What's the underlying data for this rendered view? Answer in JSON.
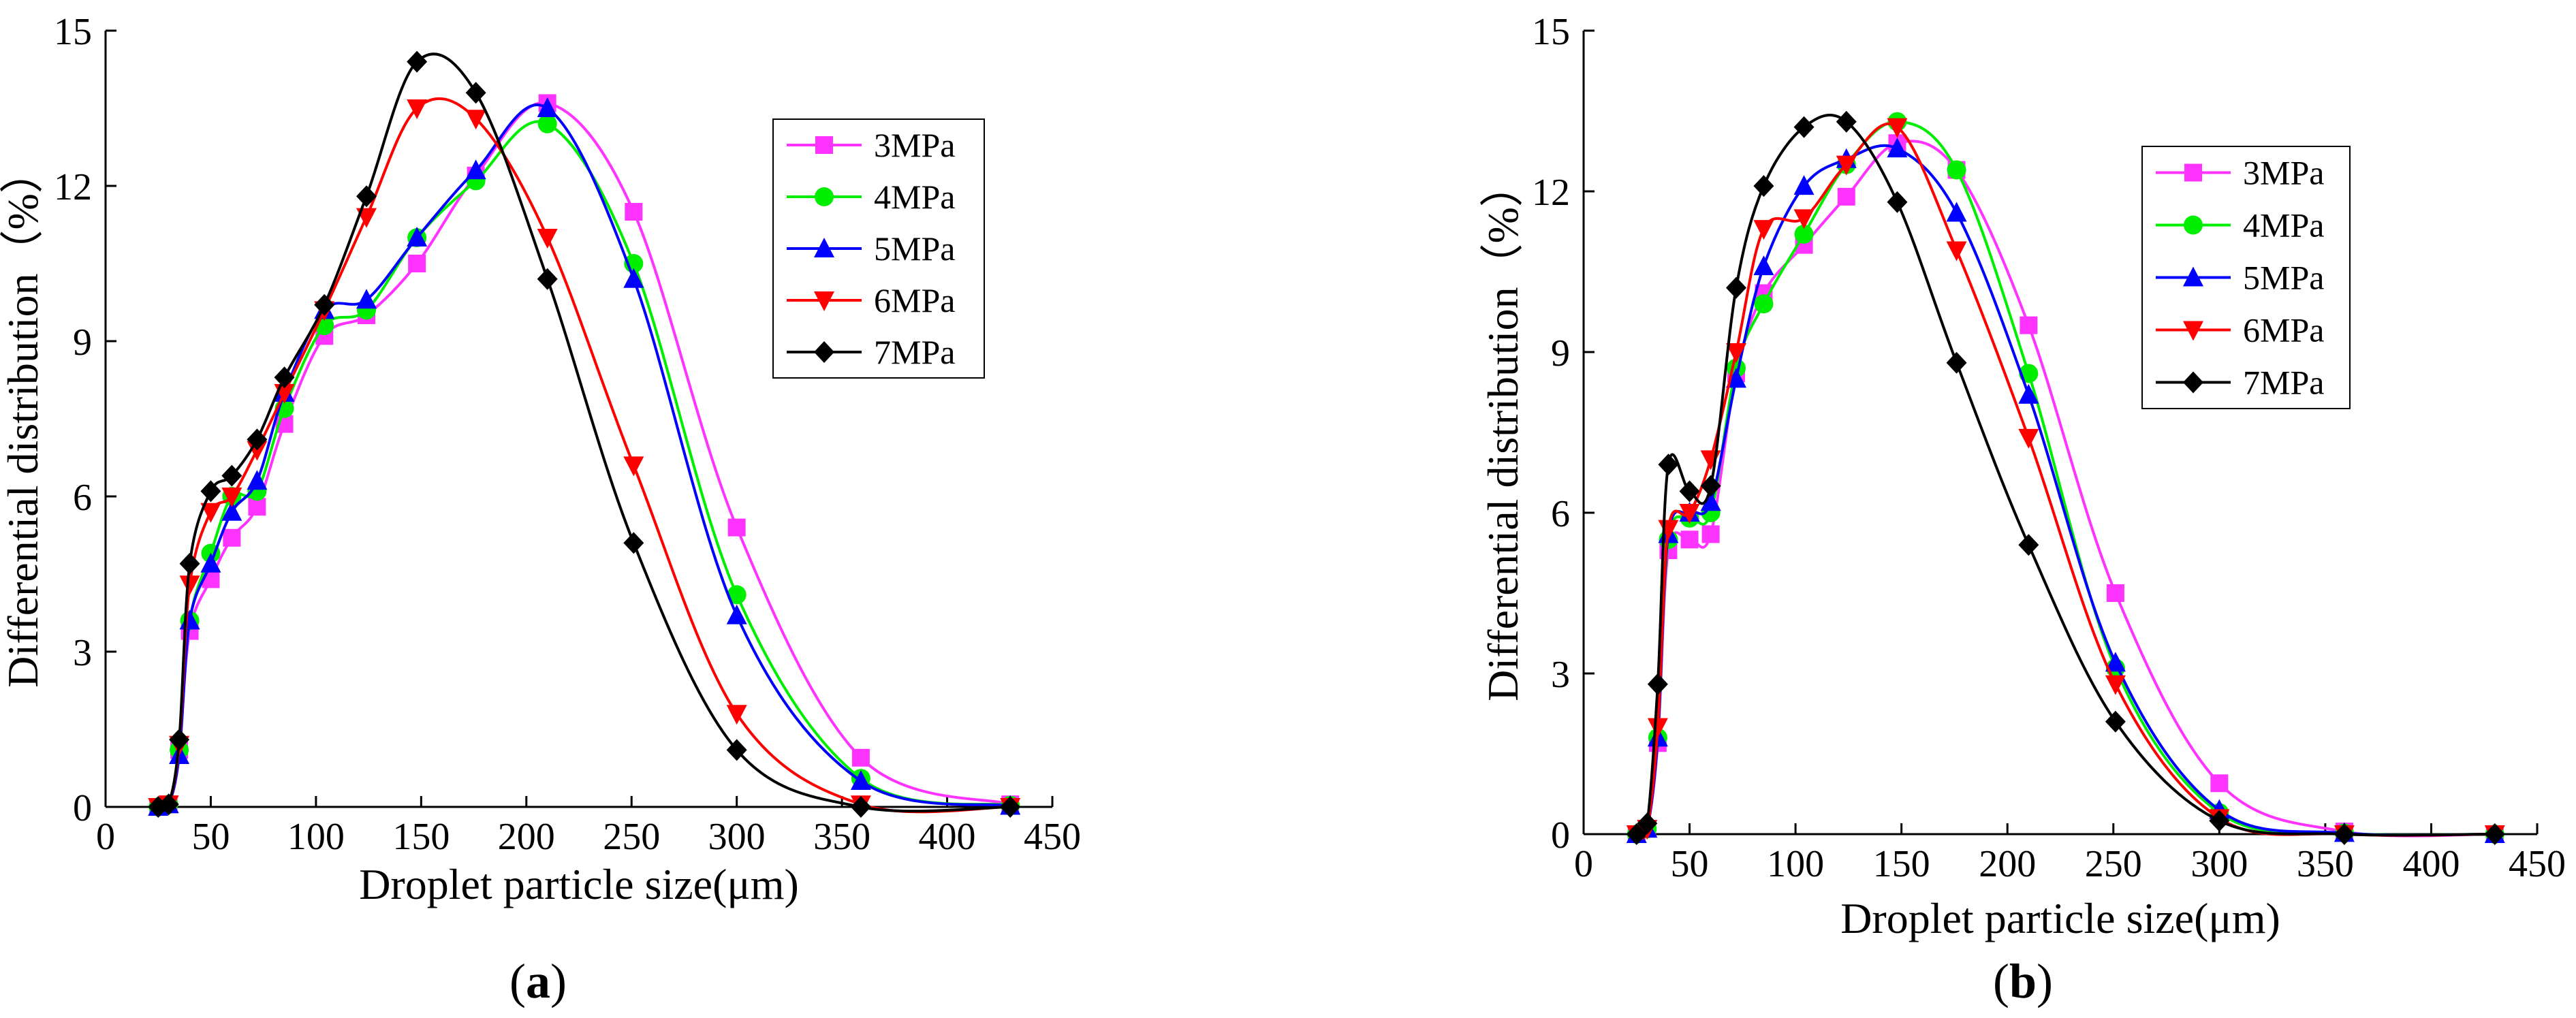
{
  "figure": {
    "panels": [
      {
        "label_open": "(",
        "label_letter": "a",
        "label_close": ")"
      },
      {
        "label_open": "(",
        "label_letter": "b",
        "label_close": ")"
      }
    ]
  },
  "series_styles": [
    {
      "name": "3MPa",
      "color": "#ff33ff",
      "marker": "square"
    },
    {
      "name": "4MPa",
      "color": "#00ee00",
      "marker": "circle"
    },
    {
      "name": "5MPa",
      "color": "#0000ff",
      "marker": "triangle-up"
    },
    {
      "name": "6MPa",
      "color": "#ff0000",
      "marker": "triangle-down"
    },
    {
      "name": "7MPa",
      "color": "#000000",
      "marker": "diamond"
    }
  ],
  "chart_data": [
    {
      "type": "line",
      "panel": "a",
      "title": "",
      "xlabel": "Droplet particle size(μm)",
      "ylabel": "Differential distribution（%）",
      "xlim": [
        0,
        450
      ],
      "ylim": [
        0,
        15
      ],
      "xticks": [
        0,
        50,
        100,
        150,
        200,
        250,
        300,
        350,
        400,
        450
      ],
      "yticks": [
        0,
        3,
        6,
        9,
        12,
        15
      ],
      "legend_position": "upper-right",
      "x": [
        25,
        30,
        35,
        40,
        50,
        60,
        72,
        85,
        104,
        124,
        148,
        176,
        210,
        251,
        300,
        359,
        430
      ],
      "series": [
        {
          "name": "3MPa",
          "values": [
            0,
            0.05,
            1.1,
            3.4,
            4.4,
            5.2,
            5.8,
            7.4,
            9.1,
            9.5,
            10.5,
            12.2,
            13.6,
            11.5,
            5.4,
            0.95,
            0.05
          ]
        },
        {
          "name": "4MPa",
          "values": [
            0,
            0.05,
            1.1,
            3.6,
            4.9,
            6.0,
            6.1,
            7.7,
            9.3,
            9.6,
            11.0,
            12.1,
            13.2,
            10.5,
            4.1,
            0.55,
            0.03
          ]
        },
        {
          "name": "5MPa",
          "values": [
            0,
            0.05,
            1.0,
            3.6,
            4.7,
            5.7,
            6.3,
            8.0,
            9.6,
            9.8,
            11.0,
            12.3,
            13.5,
            10.2,
            3.7,
            0.5,
            0.02
          ]
        },
        {
          "name": "6MPa",
          "values": [
            0,
            0.05,
            1.2,
            4.3,
            5.7,
            6.0,
            6.9,
            8.0,
            9.6,
            11.4,
            13.5,
            13.3,
            11.0,
            6.6,
            1.8,
            0.05,
            0
          ]
        },
        {
          "name": "7MPa",
          "values": [
            0,
            0.05,
            1.3,
            4.7,
            6.1,
            6.4,
            7.1,
            8.3,
            9.7,
            11.8,
            14.4,
            13.8,
            10.2,
            5.1,
            1.1,
            0,
            0
          ]
        }
      ]
    },
    {
      "type": "line",
      "panel": "b",
      "title": "",
      "xlabel": "Droplet particle size(μm)",
      "ylabel": "Differential distribution（%）",
      "xlim": [
        0,
        450
      ],
      "ylim": [
        0,
        15
      ],
      "xticks": [
        0,
        50,
        100,
        150,
        200,
        250,
        300,
        350,
        400,
        450
      ],
      "yticks": [
        0,
        3,
        6,
        9,
        12,
        15
      ],
      "legend_position": "upper-right",
      "x": [
        25,
        30,
        35,
        40,
        50,
        60,
        72,
        85,
        104,
        124,
        148,
        176,
        210,
        251,
        300,
        359,
        430
      ],
      "series": [
        {
          "name": "3MPa",
          "values": [
            0,
            0.1,
            1.7,
            5.3,
            5.5,
            5.6,
            8.6,
            10.1,
            11.0,
            11.9,
            12.9,
            12.4,
            9.5,
            4.5,
            0.95,
            0.05,
            0
          ]
        },
        {
          "name": "4MPa",
          "values": [
            0,
            0.1,
            1.8,
            5.5,
            5.9,
            6.0,
            8.7,
            9.9,
            11.2,
            12.5,
            13.3,
            12.4,
            8.6,
            3.1,
            0.4,
            0.02,
            0
          ]
        },
        {
          "name": "5MPa",
          "values": [
            0,
            0.1,
            1.8,
            5.6,
            6.0,
            6.2,
            8.5,
            10.6,
            12.1,
            12.6,
            12.8,
            11.6,
            8.2,
            3.2,
            0.45,
            0.02,
            0
          ]
        },
        {
          "name": "6MPa",
          "values": [
            0,
            0.1,
            2.0,
            5.7,
            6.0,
            7.0,
            9.0,
            11.3,
            11.5,
            12.5,
            13.2,
            10.9,
            7.4,
            2.8,
            0.3,
            0,
            0
          ]
        },
        {
          "name": "7MPa",
          "values": [
            0,
            0.2,
            2.8,
            6.9,
            6.4,
            6.5,
            10.2,
            12.1,
            13.2,
            13.3,
            11.8,
            8.8,
            5.4,
            2.1,
            0.25,
            0,
            0
          ]
        }
      ]
    }
  ]
}
